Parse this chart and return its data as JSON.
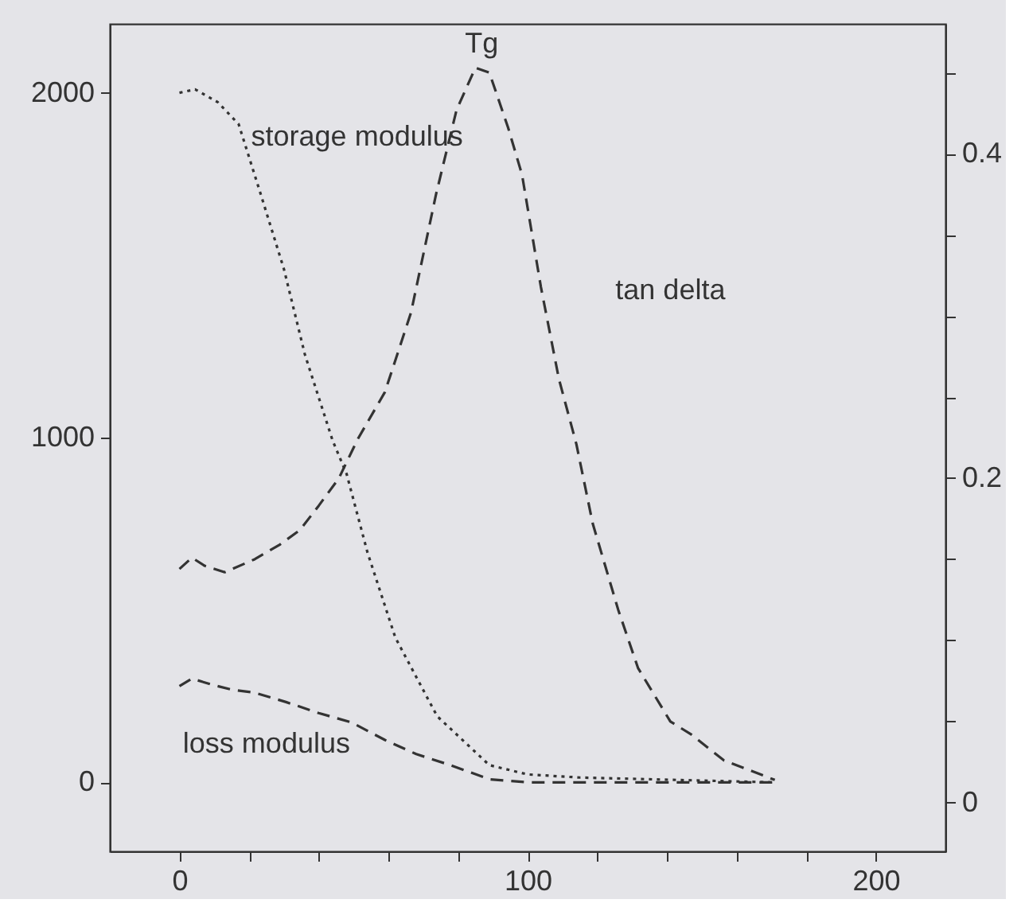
{
  "chart_data": {
    "type": "line",
    "xlim": [
      -20,
      220
    ],
    "xticks": [
      0,
      {
        "value": 20,
        "label": null
      },
      {
        "value": 40,
        "label": null
      },
      {
        "value": 60,
        "label": null
      },
      {
        "value": 80,
        "label": null
      },
      100,
      {
        "value": 120,
        "label": null
      },
      {
        "value": 140,
        "label": null
      },
      {
        "value": 160,
        "label": null
      },
      {
        "value": 180,
        "label": null
      },
      200
    ],
    "ylim": [
      -200,
      2200
    ],
    "yticks": [
      0,
      1000,
      2000
    ],
    "y2lim": [
      -0.03,
      0.48
    ],
    "y2ticks": [
      0,
      {
        "value": 0.05,
        "label": null
      },
      {
        "value": 0.1,
        "label": null
      },
      {
        "value": 0.15,
        "label": null
      },
      0.2,
      {
        "value": 0.25,
        "label": null
      },
      {
        "value": 0.3,
        "label": null
      },
      {
        "value": 0.35,
        "label": null
      },
      0.4,
      {
        "value": 0.45,
        "label": null
      }
    ],
    "grid": false,
    "marker": "none",
    "annotations": [
      "Tg"
    ],
    "series": [
      {
        "name": "storage modulus",
        "color": "#333333",
        "line_style": "dotted",
        "x": [
          0,
          4.5,
          11,
          17,
          23,
          30,
          36,
          44,
          48,
          54,
          62,
          74,
          89,
          100,
          115,
          171
        ],
        "values": [
          2000,
          2010,
          1973,
          1909,
          1717,
          1489,
          1242,
          991,
          895,
          667,
          420,
          192,
          50,
          23,
          14,
          0
        ]
      },
      {
        "name": "loss modulus",
        "color": "#333333",
        "line_style": "dashed",
        "x": [
          0,
          3.6,
          9.4,
          15,
          21.6,
          30.6,
          40,
          49.4,
          59,
          68,
          77.8,
          89,
          100,
          171
        ],
        "values": [
          279,
          301,
          283,
          269,
          260,
          233,
          201,
          174,
          123,
          82,
          50,
          9,
          0,
          0
        ]
      },
      {
        "name": "tan delta",
        "color": "#333333",
        "line_style": "dashed",
        "axis": "y2",
        "x": [
          0,
          3.6,
          7.2,
          13,
          21.6,
          28.8,
          34.6,
          40,
          45.8,
          51.2,
          59,
          66.5,
          73.7,
          79.6,
          85,
          89,
          94.4,
          98.4,
          103.8,
          109,
          114,
          118.7,
          126,
          131.7,
          141,
          147,
          156.4,
          171
        ],
        "values": [
          0.144,
          0.151,
          0.146,
          0.142,
          0.15,
          0.159,
          0.168,
          0.183,
          0.2,
          0.224,
          0.253,
          0.302,
          0.375,
          0.427,
          0.453,
          0.45,
          0.416,
          0.387,
          0.318,
          0.261,
          0.221,
          0.172,
          0.119,
          0.083,
          0.05,
          0.042,
          0.026,
          0.014
        ]
      }
    ]
  }
}
